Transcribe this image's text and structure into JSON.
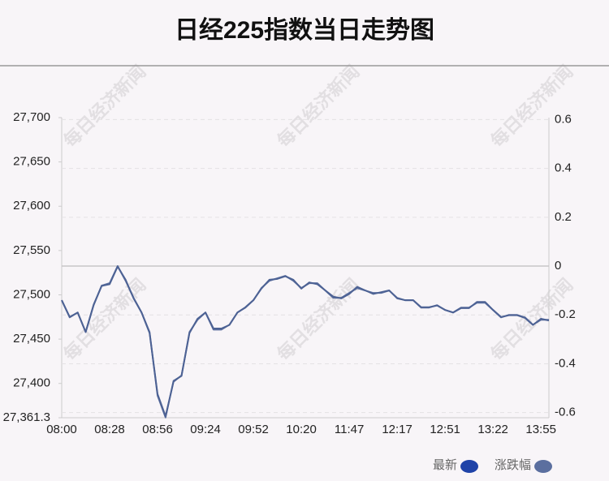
{
  "chart_data": {
    "type": "line",
    "title": "日经225指数当日走势图",
    "watermark": "每日经济新闻",
    "categories": [
      "08:00",
      null,
      null,
      null,
      null,
      null,
      "08:28",
      null,
      null,
      null,
      null,
      null,
      "08:56",
      null,
      null,
      null,
      null,
      null,
      "09:24",
      null,
      null,
      null,
      null,
      null,
      "09:52",
      null,
      null,
      null,
      null,
      null,
      "10:20",
      null,
      null,
      null,
      null,
      null,
      "11:47",
      null,
      null,
      null,
      null,
      null,
      "12:17",
      null,
      null,
      null,
      null,
      null,
      "12:51",
      null,
      null,
      null,
      null,
      null,
      "13:22",
      null,
      null,
      null,
      null,
      null,
      "13:55",
      null
    ],
    "series": [
      {
        "name": "最新",
        "color": "#1f43a8",
        "line_color": "#4d6294",
        "values": [
          27494,
          27475,
          27480,
          27458,
          27489,
          27510,
          27512,
          27532,
          27517,
          27496,
          27480,
          27457,
          27388,
          27363,
          27402,
          27409,
          27457,
          27473,
          27480,
          27462,
          27462,
          27466,
          27480,
          27486,
          27494,
          27507,
          27517,
          27518,
          27521,
          27517,
          27507,
          27514,
          27512,
          27505,
          27498,
          27496,
          27501,
          27509,
          27505,
          27501,
          27503,
          27505,
          27496,
          27494,
          27494,
          27486,
          27486,
          27488,
          27483,
          27480,
          27485,
          27485,
          27492,
          27492,
          27483,
          27475,
          27477,
          27477,
          27474,
          27466,
          27473,
          27471
        ]
      },
      {
        "name": "涨跌幅",
        "color": "#5b6f9f",
        "axis": "y2",
        "values": [
          -0.14,
          -0.21,
          -0.19,
          -0.27,
          -0.16,
          -0.08,
          -0.07,
          0.0,
          -0.06,
          -0.13,
          -0.19,
          -0.27,
          -0.53,
          -0.62,
          -0.47,
          -0.45,
          -0.27,
          -0.22,
          -0.19,
          -0.26,
          -0.26,
          -0.24,
          -0.19,
          -0.17,
          -0.14,
          -0.09,
          -0.06,
          -0.05,
          -0.04,
          -0.06,
          -0.09,
          -0.07,
          -0.07,
          -0.1,
          -0.13,
          -0.13,
          -0.11,
          -0.09,
          -0.1,
          -0.11,
          -0.11,
          -0.1,
          -0.13,
          -0.14,
          -0.14,
          -0.17,
          -0.17,
          -0.16,
          -0.18,
          -0.19,
          -0.17,
          -0.17,
          -0.15,
          -0.15,
          -0.18,
          -0.21,
          -0.2,
          -0.2,
          -0.21,
          -0.24,
          -0.22,
          -0.22
        ]
      }
    ],
    "ylim": [
      27361.3,
      27700
    ],
    "yticks": [
      {
        "value": 27361.3,
        "label": "27,361.3"
      },
      {
        "value": 27400,
        "label": "27,400"
      },
      {
        "value": 27450,
        "label": "27,450"
      },
      {
        "value": 27500,
        "label": "27,500"
      },
      {
        "value": 27550,
        "label": "27,550"
      },
      {
        "value": 27600,
        "label": "27,600"
      },
      {
        "value": 27650,
        "label": "27,650"
      },
      {
        "value": 27700,
        "label": "27,700"
      }
    ],
    "y2lim": [
      -0.621,
      0.608
    ],
    "y2ticks": [
      {
        "value": -0.6,
        "label": "-0.6"
      },
      {
        "value": -0.4,
        "label": "-0.4"
      },
      {
        "value": -0.2,
        "label": "-0.2"
      },
      0,
      {
        "value": 0.2,
        "label": "0.2"
      },
      {
        "value": 0.4,
        "label": "0.4"
      },
      {
        "value": 0.6,
        "label": "0.6"
      }
    ],
    "grid": true
  }
}
